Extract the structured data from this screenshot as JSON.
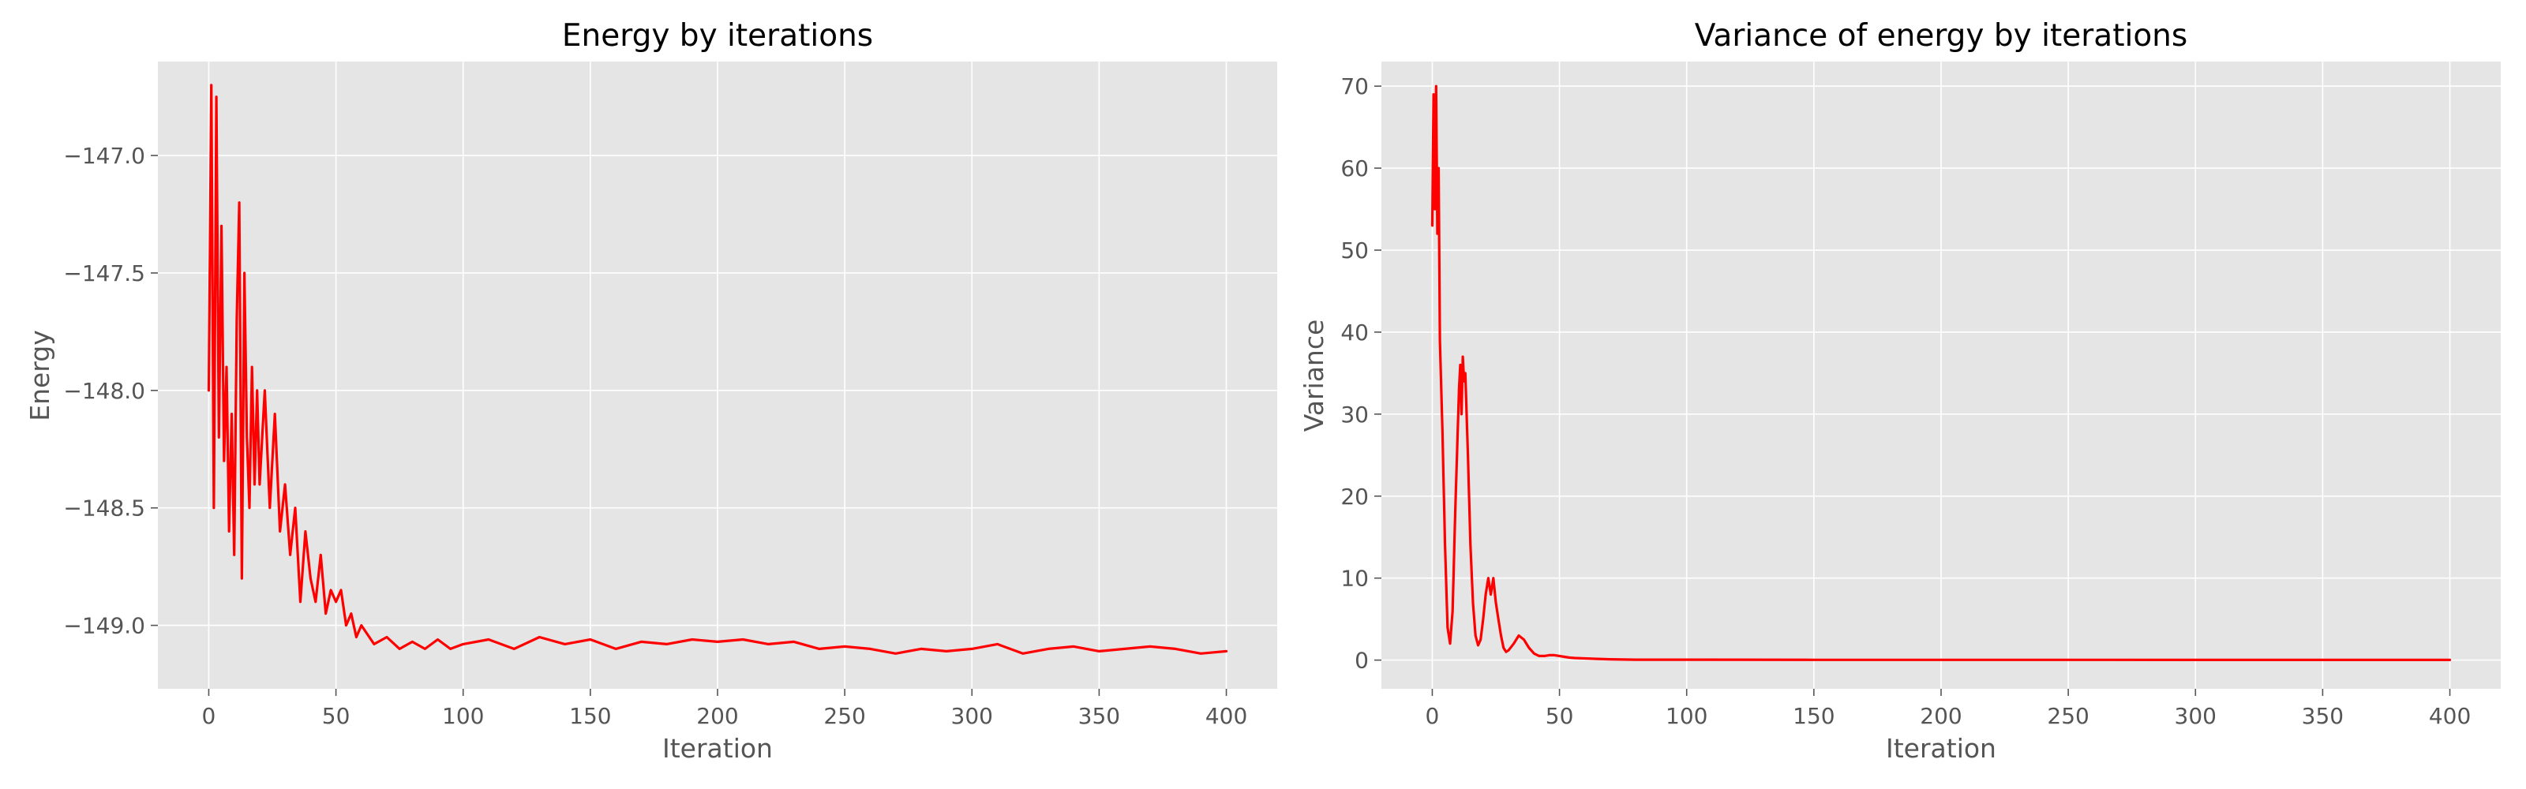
{
  "figure": {
    "background": "#ffffff"
  },
  "style": {
    "plot_bg": "#e5e5e5",
    "grid": "#ffffff",
    "line": "#ff0000",
    "tick_color": "#555555"
  },
  "chart_data": [
    {
      "type": "line",
      "title": "Energy by iterations",
      "xlabel": "Iteration",
      "ylabel": "Energy",
      "xlim": [
        -20,
        420
      ],
      "ylim": [
        -149.27,
        -146.6
      ],
      "xticks": [
        0,
        50,
        100,
        150,
        200,
        250,
        300,
        350,
        400
      ],
      "xtick_labels": [
        "0",
        "50",
        "100",
        "150",
        "200",
        "250",
        "300",
        "350",
        "400"
      ],
      "yticks": [
        -149.0,
        -148.5,
        -148.0,
        -147.5,
        -147.0
      ],
      "ytick_labels": [
        "−149.0",
        "−148.5",
        "−148.0",
        "−147.5",
        "−147.0"
      ],
      "grid": true,
      "series": [
        {
          "color": "#ff0000",
          "x": [
            0,
            1,
            2,
            3,
            4,
            5,
            6,
            7,
            8,
            9,
            10,
            11,
            12,
            13,
            14,
            15,
            16,
            17,
            18,
            19,
            20,
            22,
            24,
            26,
            28,
            30,
            32,
            34,
            36,
            38,
            40,
            42,
            44,
            46,
            48,
            50,
            52,
            54,
            56,
            58,
            60,
            65,
            70,
            75,
            80,
            85,
            90,
            95,
            100,
            110,
            120,
            130,
            140,
            150,
            160,
            170,
            180,
            190,
            200,
            210,
            220,
            230,
            240,
            250,
            260,
            270,
            280,
            290,
            300,
            310,
            320,
            330,
            340,
            350,
            360,
            370,
            380,
            390,
            400
          ],
          "values": [
            -148.0,
            -146.7,
            -148.5,
            -146.75,
            -148.2,
            -147.3,
            -148.3,
            -147.9,
            -148.6,
            -148.1,
            -148.7,
            -147.7,
            -147.2,
            -148.8,
            -147.5,
            -148.2,
            -148.5,
            -147.9,
            -148.4,
            -148.0,
            -148.4,
            -148.0,
            -148.5,
            -148.1,
            -148.6,
            -148.4,
            -148.7,
            -148.5,
            -148.9,
            -148.6,
            -148.8,
            -148.9,
            -148.7,
            -148.95,
            -148.85,
            -148.9,
            -148.85,
            -149.0,
            -148.95,
            -149.05,
            -149.0,
            -149.08,
            -149.05,
            -149.1,
            -149.07,
            -149.1,
            -149.06,
            -149.1,
            -149.08,
            -149.06,
            -149.1,
            -149.05,
            -149.08,
            -149.06,
            -149.1,
            -149.07,
            -149.08,
            -149.06,
            -149.07,
            -149.06,
            -149.08,
            -149.07,
            -149.1,
            -149.09,
            -149.1,
            -149.12,
            -149.1,
            -149.11,
            -149.1,
            -149.08,
            -149.12,
            -149.1,
            -149.09,
            -149.11,
            -149.1,
            -149.09,
            -149.1,
            -149.12,
            -149.11
          ]
        }
      ]
    },
    {
      "type": "line",
      "title": "Variance of energy by iterations",
      "xlabel": "Iteration",
      "ylabel": "Variance",
      "xlim": [
        -20,
        420
      ],
      "ylim": [
        -3.5,
        73
      ],
      "xticks": [
        0,
        50,
        100,
        150,
        200,
        250,
        300,
        350,
        400
      ],
      "xtick_labels": [
        "0",
        "50",
        "100",
        "150",
        "200",
        "250",
        "300",
        "350",
        "400"
      ],
      "yticks": [
        0,
        10,
        20,
        30,
        40,
        50,
        60,
        70
      ],
      "ytick_labels": [
        "0",
        "10",
        "20",
        "30",
        "40",
        "50",
        "60",
        "70"
      ],
      "grid": true,
      "series": [
        {
          "color": "#ff0000",
          "x": [
            0,
            0.5,
            1,
            1.5,
            2,
            2.5,
            3,
            4,
            5,
            6,
            7,
            8,
            9,
            10,
            10.5,
            11,
            11.5,
            12,
            12.5,
            13,
            14,
            15,
            16,
            17,
            18,
            19,
            20,
            21,
            22,
            23,
            24,
            25,
            26,
            27,
            28,
            29,
            30,
            32,
            34,
            36,
            38,
            40,
            42,
            44,
            46,
            48,
            50,
            52,
            54,
            56,
            60,
            65,
            70,
            80,
            100,
            150,
            200,
            250,
            300,
            350,
            400
          ],
          "values": [
            53,
            69,
            55,
            70,
            52,
            60,
            39,
            28,
            14,
            4,
            2,
            6,
            18,
            28,
            33,
            36,
            30,
            37,
            34,
            35,
            25,
            14,
            7,
            3,
            1.8,
            2.5,
            5,
            8,
            10,
            8,
            10,
            7,
            5,
            3,
            1.5,
            1.0,
            1.2,
            2.0,
            3.0,
            2.5,
            1.5,
            0.8,
            0.5,
            0.5,
            0.6,
            0.6,
            0.5,
            0.4,
            0.3,
            0.25,
            0.2,
            0.15,
            0.1,
            0.05,
            0.05,
            0.03,
            0.03,
            0.03,
            0.02,
            0.02,
            0.02
          ]
        }
      ]
    }
  ]
}
